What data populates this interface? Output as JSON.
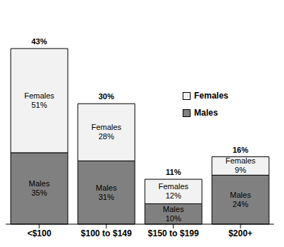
{
  "chart_data": {
    "type": "bar",
    "stacked": true,
    "data_labels": true,
    "tick_labels": "x",
    "legend": "right",
    "categories": [
      "<$100",
      "$100 to $149",
      "$150 to $199",
      "$200+"
    ],
    "series": [
      {
        "name": "Males",
        "color": "#808080",
        "values": [
          35,
          31,
          10,
          24
        ],
        "value_labels": [
          "35%",
          "31%",
          "10%",
          "24%"
        ]
      },
      {
        "name": "Females",
        "color": "#f2f2f2",
        "values": [
          51,
          28,
          12,
          9
        ],
        "value_labels": [
          "51%",
          "28%",
          "12%",
          "9%"
        ]
      }
    ],
    "totals": {
      "values": [
        43,
        30,
        11,
        16
      ],
      "value_labels": [
        "43%",
        "30%",
        "11%",
        "16%"
      ]
    }
  }
}
